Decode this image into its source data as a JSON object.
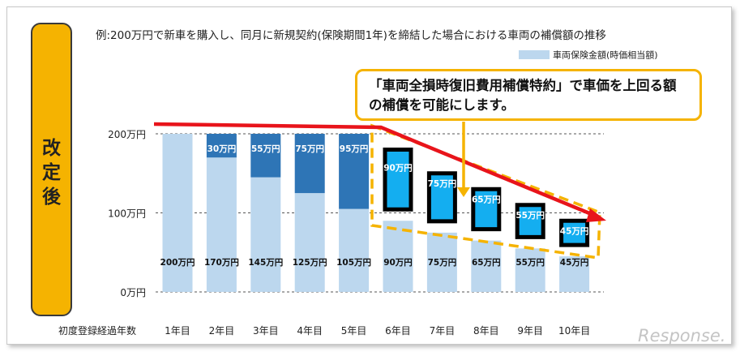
{
  "caption": "例:200万円で新車を購入し、同月に新規契約(保険期間1年)を締結した場合における車両の補償額の推移",
  "side_label": "改定後",
  "callout": {
    "line1": "「車両全損時復旧費用補償特約」で車価を上回る額",
    "line2": "の補償を可能にします。"
  },
  "watermark": "Response.",
  "colors": {
    "side_bg": "#f5b301",
    "base_bar": "#bcd7ee",
    "top_bar": "#2e75b6",
    "special_bar": "#14aef0",
    "arrow": "#e8141b",
    "highlight_dash": "#f5b301"
  },
  "chart_data": {
    "type": "bar",
    "stacked": true,
    "x_axis_title": "初度登録経過年数",
    "categories": [
      "1年目",
      "2年目",
      "3年目",
      "4年目",
      "5年目",
      "6年目",
      "7年目",
      "8年目",
      "9年目",
      "10年目"
    ],
    "y_ticks": [
      "0万円",
      "100万円",
      "200万円"
    ],
    "y_tick_values": [
      0,
      100,
      200
    ],
    "ylim": [
      0,
      200
    ],
    "unit": "万円",
    "legend": [
      {
        "label": "車両保険金額(時価相当額)",
        "color": "#bcd7ee"
      }
    ],
    "series": [
      {
        "name": "車両保険金額(時価相当額)",
        "values": [
          200,
          170,
          145,
          125,
          105,
          90,
          75,
          65,
          55,
          45
        ],
        "labels": [
          "200万円",
          "170万円",
          "145万円",
          "125万円",
          "105万円",
          "90万円",
          "75万円",
          "65万円",
          "55万円",
          "45万円"
        ]
      },
      {
        "values": [
          0,
          30,
          55,
          75,
          95,
          null,
          null,
          null,
          null,
          null
        ],
        "labels": [
          "",
          "30万円",
          "55万円",
          "75万円",
          "95万円",
          "",
          "",
          "",
          "",
          ""
        ]
      },
      {
        "values": [
          null,
          null,
          null,
          null,
          null,
          90,
          75,
          65,
          55,
          45
        ],
        "labels": [
          "",
          "",
          "",
          "",
          "",
          "90万円",
          "75万円",
          "65万円",
          "55万円",
          "45万円"
        ]
      }
    ],
    "gridlines": "dashed",
    "highlight": "6年目-10年目"
  }
}
